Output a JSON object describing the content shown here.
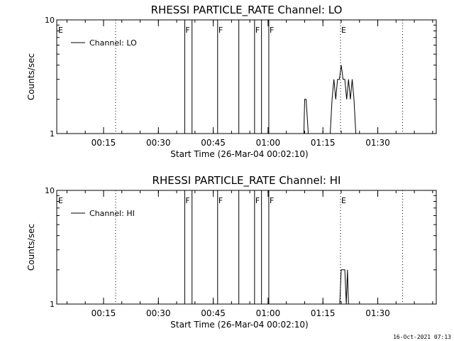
{
  "timestamp": "16-Oct-2021 07:13",
  "chart_data": [
    {
      "type": "line",
      "title": "RHESSI PARTICLE_RATE Channel: LO",
      "xlabel": "Start Time (26-Mar-04 00:02:10)",
      "ylabel": "Counts/sec",
      "yscale": "log",
      "xlim": [
        2.2,
        106
      ],
      "ylim": [
        1,
        10
      ],
      "x_tick_labels": [
        "00:15",
        "00:30",
        "00:45",
        "01:00",
        "01:15",
        "01:30"
      ],
      "x_ticks": [
        15,
        30,
        45,
        60,
        75,
        90
      ],
      "y_tick_labels": [
        "1",
        "10"
      ],
      "y_ticks": [
        1,
        10
      ],
      "legend": {
        "label": "Channel: LO",
        "position": "top-left"
      },
      "solid_markers": [
        37.2,
        39.2,
        46.2,
        52.0,
        56.3,
        58.2,
        60.2
      ],
      "dotted_markers": [
        18.3,
        79.8,
        96.8
      ],
      "marker_labels": [
        {
          "x": 2.6,
          "text": "E"
        },
        {
          "x": 37.4,
          "text": "F"
        },
        {
          "x": 46.4,
          "text": "F"
        },
        {
          "x": 56.5,
          "text": "F"
        },
        {
          "x": 60.4,
          "text": "F"
        },
        {
          "x": 80.0,
          "text": "E"
        }
      ],
      "series": [
        {
          "name": "Channel: LO",
          "x": [
            69.8,
            70.0,
            70.4,
            71.0,
            71.2,
            77.0,
            77.5,
            78.0,
            78.5,
            79.0,
            79.5,
            80.0,
            80.5,
            81.0,
            81.5,
            82.0,
            82.5,
            83.0,
            83.5,
            84.0,
            84.3,
            84.6
          ],
          "y": [
            1,
            2,
            2,
            1,
            1,
            1,
            2,
            3,
            2,
            3,
            3,
            4,
            3,
            3,
            2,
            3,
            2,
            3,
            2,
            1,
            1,
            1
          ]
        }
      ]
    },
    {
      "type": "line",
      "title": "RHESSI PARTICLE_RATE Channel: HI",
      "xlabel": "Start Time (26-Mar-04 00:02:10)",
      "ylabel": "Counts/sec",
      "yscale": "log",
      "xlim": [
        2.2,
        106
      ],
      "ylim": [
        1,
        10
      ],
      "x_tick_labels": [
        "00:15",
        "00:30",
        "00:45",
        "01:00",
        "01:15",
        "01:30"
      ],
      "x_ticks": [
        15,
        30,
        45,
        60,
        75,
        90
      ],
      "y_tick_labels": [
        "1",
        "10"
      ],
      "y_ticks": [
        1,
        10
      ],
      "legend": {
        "label": "Channel: HI",
        "position": "top-left"
      },
      "solid_markers": [
        37.2,
        39.2,
        46.2,
        52.0,
        56.3,
        58.2,
        60.2
      ],
      "dotted_markers": [
        18.3,
        79.8,
        96.8
      ],
      "marker_labels": [
        {
          "x": 2.6,
          "text": "E"
        },
        {
          "x": 37.4,
          "text": "F"
        },
        {
          "x": 46.4,
          "text": "F"
        },
        {
          "x": 56.5,
          "text": "F"
        },
        {
          "x": 60.4,
          "text": "F"
        },
        {
          "x": 80.0,
          "text": "E"
        }
      ],
      "series": [
        {
          "name": "Channel: HI",
          "x": [
            79.6,
            80.0,
            80.4,
            81.0,
            81.4,
            81.7,
            82.0
          ],
          "y": [
            1,
            2,
            2,
            2,
            1,
            2,
            1
          ]
        }
      ]
    }
  ]
}
